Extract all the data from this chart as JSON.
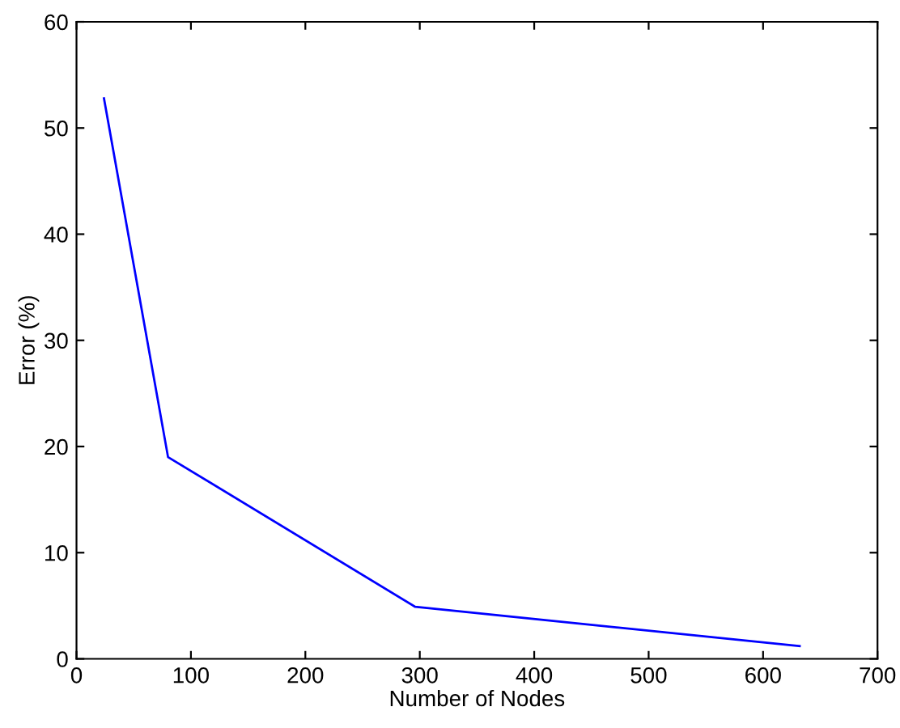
{
  "chart_data": {
    "type": "line",
    "xlabel": "Number of Nodes",
    "ylabel": "Error (%)",
    "x": [
      24,
      80,
      296,
      632
    ],
    "series": [
      {
        "color": "#0000ff",
        "values": [
          52.8,
          19,
          4.9,
          1.2
        ]
      }
    ],
    "xlim": [
      0,
      700
    ],
    "ylim": [
      0,
      60
    ],
    "xticks": [
      0,
      100,
      200,
      300,
      400,
      500,
      600,
      700
    ],
    "yticks": [
      0,
      10,
      20,
      30,
      40,
      50,
      60
    ],
    "grid": false,
    "legend": false,
    "marker": "none",
    "line_style": "solid"
  }
}
